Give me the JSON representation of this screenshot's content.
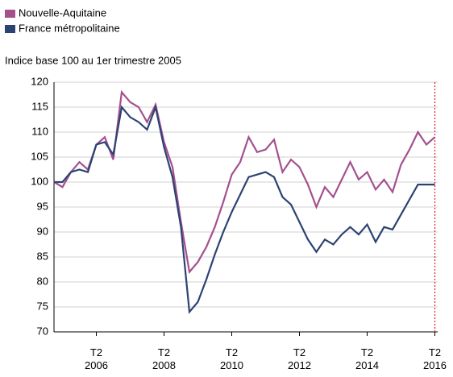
{
  "chart_data": {
    "type": "line",
    "subtitle": "Indice base 100 au 1er trimestre 2005",
    "categories": [
      null,
      null,
      null,
      null,
      null,
      "T2\n2006",
      null,
      null,
      null,
      null,
      null,
      null,
      null,
      "T2\n2008",
      null,
      null,
      null,
      null,
      null,
      null,
      null,
      "T2\n2010",
      null,
      null,
      null,
      null,
      null,
      null,
      null,
      "T2\n2012",
      null,
      null,
      null,
      null,
      null,
      null,
      null,
      "T2\n2014",
      null,
      null,
      null,
      null,
      null,
      null,
      null,
      "T2\n2016"
    ],
    "series": [
      {
        "name": "Nouvelle-Aquitaine",
        "color": "#a4508f",
        "values": [
          100,
          99,
          102,
          104,
          102.5,
          107.5,
          109,
          104.5,
          118,
          116,
          115,
          112,
          115.5,
          108,
          103,
          92,
          82,
          84,
          87,
          91,
          96,
          101.5,
          104,
          109,
          106,
          106.5,
          108.5,
          102,
          104.5,
          103,
          99.5,
          95,
          99,
          97,
          100.5,
          104,
          100.5,
          102,
          98.5,
          100.5,
          98,
          103.5,
          106.5,
          110,
          107.5,
          109
        ]
      },
      {
        "name": "France métropolitaine",
        "color": "#2c4372",
        "values": [
          100,
          100,
          102,
          102.5,
          102,
          107.5,
          108,
          105.5,
          115,
          113,
          112,
          110.5,
          115,
          107,
          101,
          91,
          74,
          76,
          80.5,
          85.5,
          90,
          94,
          97.5,
          101,
          101.5,
          102,
          101,
          97,
          95.5,
          92,
          88.5,
          86,
          88.5,
          87.5,
          89.5,
          91,
          89.5,
          91.5,
          88,
          91,
          90.5,
          93.5,
          96.5,
          99.5,
          99.5,
          99.5
        ]
      }
    ],
    "ylim": [
      70,
      120
    ],
    "yticks": [
      70,
      75,
      80,
      85,
      90,
      95,
      100,
      105,
      110,
      115,
      120
    ],
    "grid": true
  }
}
